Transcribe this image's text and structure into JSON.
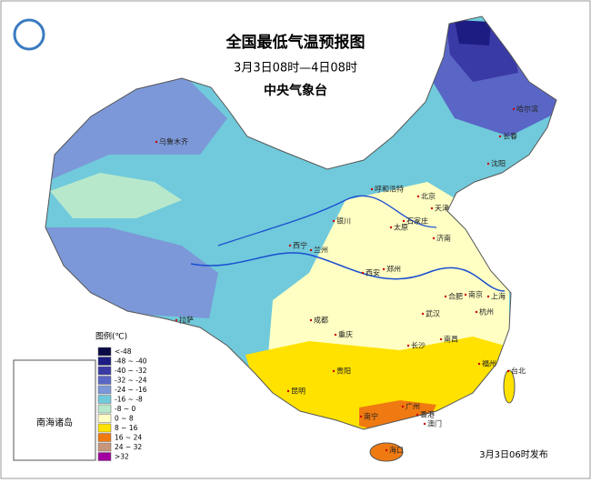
{
  "header": {
    "title": "全国最低气温预报图",
    "subtitle": "3月3日08时—4日08时",
    "issuer": "中央气象台"
  },
  "legend": {
    "title": "图例(℃)",
    "items": [
      {
        "label": "<-48",
        "color": "#0a0a46"
      },
      {
        "label": "-48 ~ -40",
        "color": "#1c1c82"
      },
      {
        "label": "-40 ~ -32",
        "color": "#3a3aa6"
      },
      {
        "label": "-32 ~ -24",
        "color": "#5a66c6"
      },
      {
        "label": "-24 ~ -16",
        "color": "#7c98d8"
      },
      {
        "label": "-16 ~ -8",
        "color": "#70cadb"
      },
      {
        "label": "-8 ~ 0",
        "color": "#b8e8cc"
      },
      {
        "label": "0 ~ 8",
        "color": "#ffffc4"
      },
      {
        "label": "8 ~ 16",
        "color": "#ffe200"
      },
      {
        "label": "16 ~ 24",
        "color": "#f07a12"
      },
      {
        "label": "24 ~ 32",
        "color": "#c8967c"
      },
      {
        "label": ">32",
        "color": "#a000a0"
      }
    ]
  },
  "cities": [
    "乌鲁木齐",
    "哈尔滨",
    "长春",
    "沈阳",
    "呼和浩特",
    "北京",
    "天津",
    "银川",
    "太原",
    "石家庄",
    "西宁",
    "兰州",
    "济南",
    "西安",
    "郑州",
    "合肥",
    "南京",
    "上海",
    "拉萨",
    "成都",
    "武汉",
    "杭州",
    "重庆",
    "长沙",
    "南昌",
    "贵阳",
    "福州",
    "台北",
    "昆明",
    "南宁",
    "广州",
    "香港",
    "澳门",
    "海口"
  ],
  "inset": {
    "label": "南海诸岛"
  },
  "footer": {
    "release": "3月3日06时发布"
  }
}
